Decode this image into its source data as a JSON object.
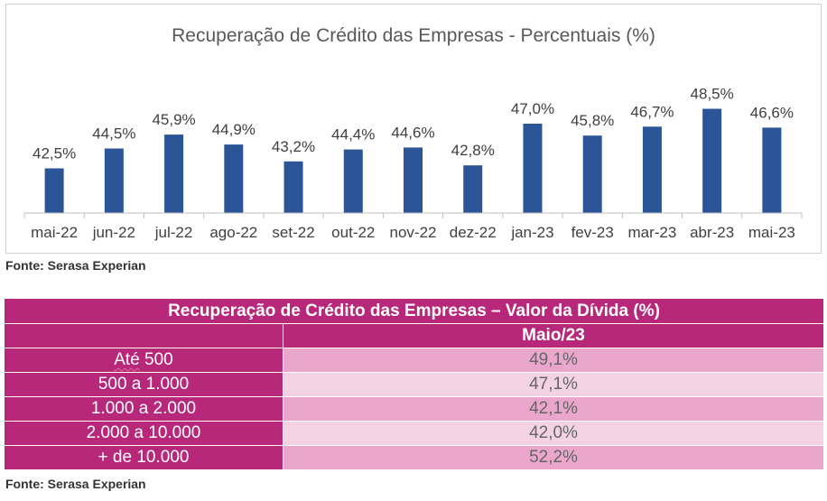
{
  "chart_data": {
    "type": "bar",
    "title": "Recuperação de Crédito das Empresas - Percentuais (%)",
    "categories": [
      "mai-22",
      "jun-22",
      "jul-22",
      "ago-22",
      "set-22",
      "out-22",
      "nov-22",
      "dez-22",
      "jan-23",
      "fev-23",
      "mar-23",
      "abr-23",
      "mai-23"
    ],
    "values": [
      42.5,
      44.5,
      45.9,
      44.9,
      43.2,
      44.4,
      44.6,
      42.8,
      47.0,
      45.8,
      46.7,
      48.5,
      46.6
    ],
    "data_labels": [
      "42,5%",
      "44,5%",
      "45,9%",
      "44,9%",
      "43,2%",
      "44,4%",
      "44,6%",
      "42,8%",
      "47,0%",
      "45,8%",
      "46,7%",
      "48,5%",
      "46,6%"
    ],
    "color": "#2b5597",
    "ylim": [
      38,
      50
    ],
    "grid": false,
    "legend": "none"
  },
  "chart_source": "Fonte: Serasa Experian",
  "table": {
    "title": "Recuperação de Crédito das Empresas – Valor da Dívida (%)",
    "column_header": "Maio/23",
    "rows": [
      {
        "label": "Até 500",
        "value": "49,1%"
      },
      {
        "label": "500 a 1.000",
        "value": "47,1%"
      },
      {
        "label": "1.000 a 2.000",
        "value": "42,1%"
      },
      {
        "label": "2.000 a 10.000",
        "value": "42,0%"
      },
      {
        "label": "+ de 10.000",
        "value": "52,2%"
      }
    ],
    "colors": {
      "header": "#b8287a",
      "row_a": "#eaa6cb",
      "row_b": "#f3d2e4"
    }
  },
  "table_source": "Fonte: Serasa Experian"
}
